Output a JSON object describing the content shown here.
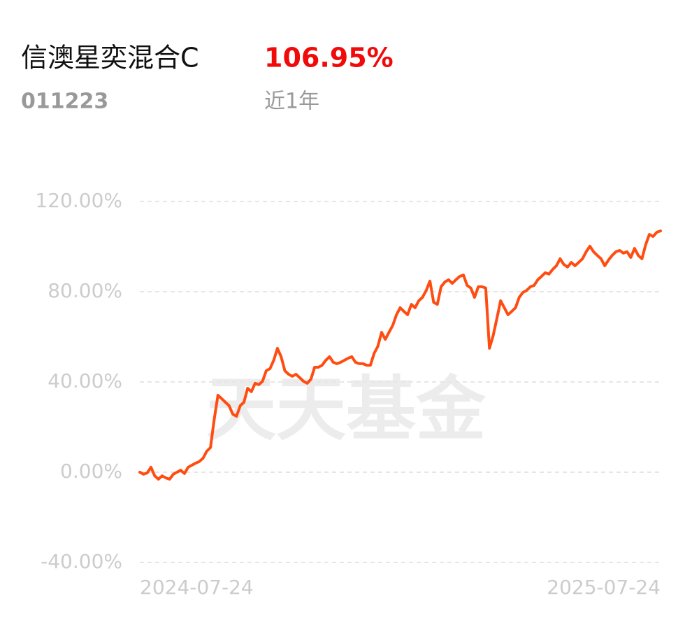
{
  "chart_data": {
    "type": "line",
    "title": "信澳星奕混合C",
    "return_value": "106.95%",
    "return_color": "#f00a0a",
    "code": "011223",
    "period": "近1年",
    "watermark": "天天基金",
    "x_labels": [
      "2024-07-24",
      "2025-07-24"
    ],
    "ylim": [
      -40,
      120
    ],
    "yticks": [
      {
        "value": -40,
        "label": "-40.00%"
      },
      {
        "value": 0,
        "label": "0.00%"
      },
      {
        "value": 40,
        "label": "40.00%"
      },
      {
        "value": 80,
        "label": "80.00%"
      },
      {
        "value": 120,
        "label": "120.00%"
      }
    ],
    "grid": true,
    "series": [
      {
        "color": "#ff4d12",
        "values": [
          0,
          -0.9,
          -0.3,
          2.2,
          -1.6,
          -3.1,
          -1.6,
          -2.5,
          -3.1,
          -0.9,
          0,
          0.9,
          -0.6,
          2.2,
          3.1,
          4.0,
          4.7,
          6.2,
          9.3,
          10.9,
          23.3,
          34.1,
          32.6,
          31.0,
          29.5,
          25.7,
          24.8,
          29.5,
          31.0,
          37.2,
          35.7,
          39.4,
          38.8,
          40.3,
          45.0,
          45.9,
          49.6,
          54.9,
          51.2,
          45.0,
          43.4,
          42.5,
          43.4,
          41.9,
          40.3,
          39.4,
          41.2,
          46.5,
          46.5,
          47.4,
          49.6,
          51.2,
          48.7,
          48.1,
          48.7,
          49.6,
          50.5,
          51.2,
          48.7,
          48.1,
          48.1,
          47.4,
          47.4,
          52.7,
          55.8,
          62.0,
          58.9,
          62.0,
          65.1,
          69.8,
          72.9,
          71.3,
          69.8,
          74.4,
          72.9,
          76.0,
          77.5,
          80.6,
          84.7,
          75.3,
          74.4,
          82.2,
          84.3,
          85.3,
          83.7,
          85.3,
          86.8,
          87.4,
          82.8,
          81.6,
          77.5,
          82.2,
          82.2,
          81.6,
          54.9,
          60.5,
          68.2,
          76.0,
          72.9,
          69.8,
          71.3,
          72.9,
          77.5,
          79.7,
          80.6,
          82.2,
          82.8,
          85.3,
          86.8,
          88.4,
          87.8,
          89.9,
          91.5,
          94.6,
          92.1,
          90.9,
          93.0,
          91.5,
          93.0,
          94.6,
          97.7,
          100.2,
          97.7,
          96.1,
          94.6,
          91.5,
          94.0,
          96.1,
          97.7,
          98.3,
          97.1,
          97.7,
          95.2,
          99.2,
          96.1,
          94.6,
          100.8,
          105.4,
          104.5,
          106.4,
          106.95
        ]
      }
    ]
  }
}
